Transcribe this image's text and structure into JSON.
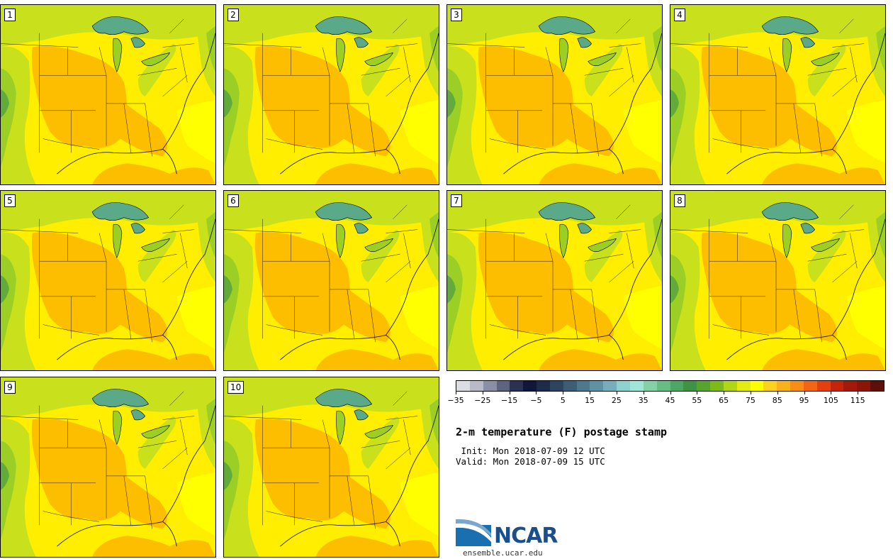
{
  "panels": [
    {
      "label": "1"
    },
    {
      "label": "2"
    },
    {
      "label": "3"
    },
    {
      "label": "4"
    },
    {
      "label": "5"
    },
    {
      "label": "6"
    },
    {
      "label": "7"
    },
    {
      "label": "8"
    },
    {
      "label": "9"
    },
    {
      "label": "10"
    }
  ],
  "colorbar": {
    "colors": [
      "#dcdde3",
      "#b9bac6",
      "#8a8fa5",
      "#5d647f",
      "#2b3153",
      "#0f173a",
      "#1d2a4a",
      "#2e4561",
      "#3e5d77",
      "#4d788e",
      "#5d93a4",
      "#77aebb",
      "#8fd1cf",
      "#9fe6d8",
      "#83d1a5",
      "#66bd84",
      "#4ea865",
      "#3e9444",
      "#56a52c",
      "#7dbb1c",
      "#b0d616",
      "#e4ec10",
      "#ffff00",
      "#fdd21f",
      "#fbb11c",
      "#f88e18",
      "#f26514",
      "#e33f0f",
      "#c3250b",
      "#a3190c",
      "#8c1508",
      "#5e1008"
    ],
    "tick_labels": [
      "−35",
      "−25",
      "−15",
      "−5",
      "5",
      "15",
      "25",
      "35",
      "45",
      "55",
      "65",
      "75",
      "85",
      "95",
      "105",
      "115"
    ]
  },
  "title": "2-m temperature (F) postage stamp",
  "init": " Init: Mon 2018-07-09 12 UTC",
  "valid": "Valid: Mon 2018-07-09 15 UTC",
  "logo": {
    "text": "NCAR",
    "url": "ensemble.ucar.edu"
  },
  "map_colors": {
    "base": "#ffee00",
    "warm": "#fdbe00",
    "cool": "#c8e11c",
    "cooler": "#9bcf25",
    "coolest": "#62ab3a",
    "lake": "#5aa989",
    "ocean": "#ffff00"
  }
}
